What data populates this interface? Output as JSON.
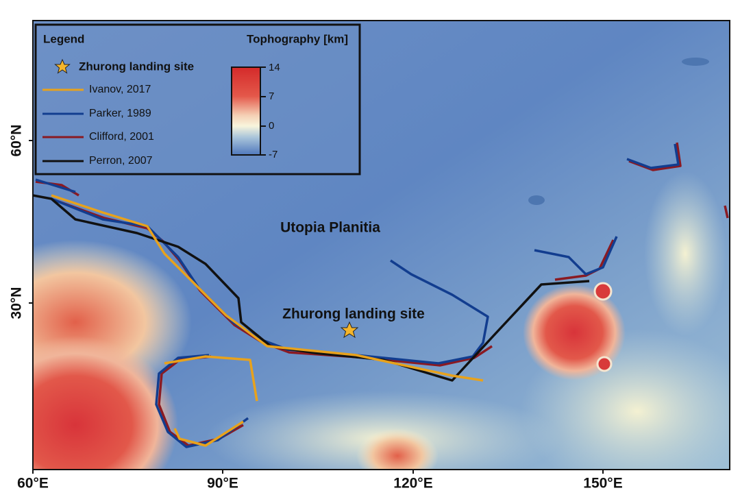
{
  "legend": {
    "title": "Legend",
    "colorbar_title": "Tophography [km]",
    "colorbar_ticks": [
      14,
      7,
      0,
      -7
    ],
    "entries": [
      "Zhurong landing site",
      "Ivanov, 2017",
      "Parker, 1989",
      "Clifford, 2001",
      "Perron, 2007"
    ]
  },
  "map": {
    "labels": [
      "Utopia Planitia",
      "Zhurong landing site"
    ],
    "lat_labels": [
      "60°N",
      "30°N"
    ],
    "lon_labels": [
      "60°E",
      "90°E",
      "120°E",
      "150°E"
    ]
  }
}
